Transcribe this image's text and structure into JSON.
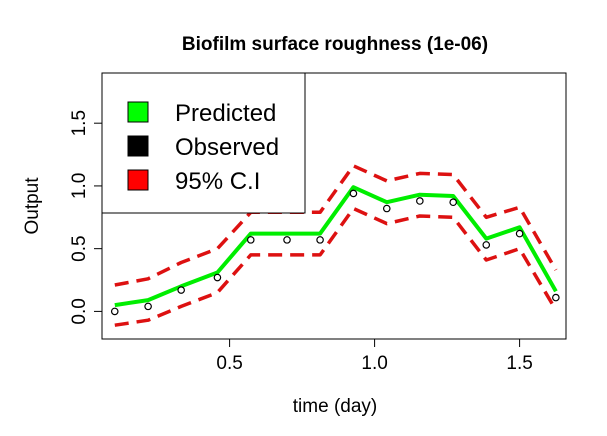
{
  "chart_data": {
    "type": "line",
    "title": "Biofilm surface roughness (1e-06)",
    "xlabel": "time (day)",
    "ylabel": "Output",
    "xlim": [
      0.06,
      1.66
    ],
    "ylim": [
      -0.22,
      1.9
    ],
    "xticks": [
      0.5,
      1.0,
      1.5
    ],
    "xtick_labels": [
      "0.5",
      "1.0",
      "1.5"
    ],
    "yticks": [
      0.0,
      0.5,
      1.0,
      1.5
    ],
    "ytick_labels": [
      "0.0",
      "0.5",
      "1.0",
      "1.5"
    ],
    "grid": false,
    "legend": {
      "placement": "top-left",
      "entries": [
        {
          "label": "Predicted",
          "color": "#00ff00"
        },
        {
          "label": "Observed",
          "color": "#000000"
        },
        {
          "label": "95% C.I",
          "color": "#ff0000"
        }
      ]
    },
    "x": [
      0.104,
      0.219,
      0.333,
      0.458,
      0.573,
      0.698,
      0.812,
      0.927,
      1.042,
      1.156,
      1.271,
      1.385,
      1.5,
      1.625
    ],
    "series": [
      {
        "name": "Predicted",
        "style": "solid",
        "color": "#00ee00",
        "values": [
          0.05,
          0.09,
          0.2,
          0.31,
          0.62,
          0.62,
          0.62,
          0.99,
          0.87,
          0.93,
          0.92,
          0.58,
          0.67,
          0.16
        ]
      },
      {
        "name": "Observed",
        "style": "points",
        "color": "#000000",
        "values": [
          0.0,
          0.04,
          0.17,
          0.27,
          0.57,
          0.57,
          0.57,
          0.94,
          0.82,
          0.88,
          0.87,
          0.53,
          0.62,
          0.11
        ]
      },
      {
        "name": "95% C.I upper",
        "style": "dashed",
        "color": "#dd1111",
        "values": [
          0.21,
          0.26,
          0.39,
          0.5,
          0.79,
          0.79,
          0.79,
          1.16,
          1.04,
          1.1,
          1.09,
          0.75,
          0.83,
          0.33
        ]
      },
      {
        "name": "95% C.I lower",
        "style": "dashed",
        "color": "#dd1111",
        "values": [
          -0.11,
          -0.07,
          0.04,
          0.15,
          0.45,
          0.45,
          0.45,
          0.82,
          0.7,
          0.76,
          0.75,
          0.41,
          0.5,
          0.01
        ]
      }
    ]
  }
}
